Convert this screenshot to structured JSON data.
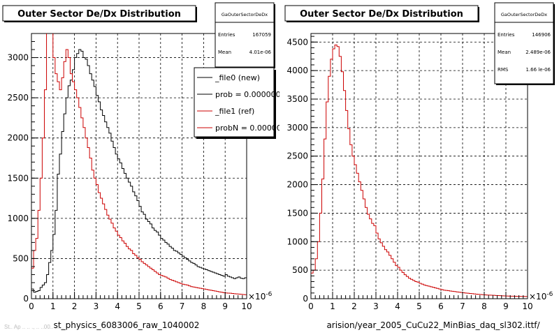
{
  "chart_data": [
    {
      "type": "histogram",
      "title": "Outer Sector De/Dx Distribution",
      "xlabel": "st_physics_6083006_raw_1040002",
      "x_exponent_label": "×10",
      "x_exponent_sup": "-6",
      "xlim": [
        0,
        10
      ],
      "ylim": [
        0,
        3300
      ],
      "x_ticks": [
        0,
        1,
        2,
        3,
        4,
        5,
        6,
        7,
        8,
        9,
        10
      ],
      "y_ticks": [
        0,
        500,
        1000,
        1500,
        2000,
        2500,
        3000
      ],
      "grid": true,
      "stats_box": {
        "title": "GaOuterSectorDeDx",
        "rows": [
          {
            "label": "Entries",
            "value": "167059"
          },
          {
            "label": "Mean",
            "value": "4.01e-06"
          }
        ]
      },
      "legend": {
        "placement": "top-right",
        "entries": [
          {
            "label": "_file0 (new)",
            "color": "#000000"
          },
          {
            "label": "prob = 0.000000",
            "color": "#000000"
          },
          {
            "label": "_file1 (ref)",
            "color": "#cc0000"
          },
          {
            "label": "probN = 0.000000",
            "color": "#cc0000"
          }
        ]
      },
      "series": [
        {
          "name": "_file0 (new)",
          "color": "#000000",
          "bin_width": 0.1,
          "x_start": 0,
          "values": [
            120,
            80,
            90,
            100,
            140,
            170,
            200,
            300,
            450,
            600,
            800,
            1100,
            1550,
            1800,
            2080,
            2300,
            2500,
            2650,
            2720,
            2850,
            3000,
            3050,
            3100,
            3080,
            3000,
            2980,
            2900,
            2800,
            2720,
            2640,
            2530,
            2450,
            2350,
            2280,
            2200,
            2130,
            2060,
            1960,
            1880,
            1800,
            1740,
            1690,
            1620,
            1560,
            1500,
            1450,
            1400,
            1330,
            1280,
            1220,
            1150,
            1080,
            1050,
            990,
            960,
            930,
            880,
            850,
            830,
            790,
            750,
            730,
            700,
            680,
            650,
            630,
            600,
            590,
            570,
            550,
            530,
            510,
            490,
            470,
            450,
            440,
            420,
            400,
            390,
            380,
            370,
            360,
            350,
            340,
            330,
            320,
            310,
            300,
            290,
            280,
            300,
            280,
            270,
            260,
            250,
            260,
            270,
            255,
            250,
            260
          ]
        },
        {
          "name": "_file1 (ref)",
          "color": "#cc0000",
          "bin_width": 0.1,
          "x_start": 0,
          "values": [
            380,
            600,
            750,
            1100,
            1500,
            2000,
            2600,
            3400,
            3500,
            3500,
            3000,
            2800,
            2700,
            2600,
            2750,
            2950,
            3100,
            3000,
            2800,
            2700,
            2600,
            2500,
            2380,
            2250,
            2130,
            2000,
            1880,
            1750,
            1600,
            1500,
            1420,
            1320,
            1250,
            1180,
            1110,
            1040,
            990,
            940,
            880,
            840,
            790,
            760,
            720,
            690,
            650,
            620,
            600,
            560,
            540,
            510,
            490,
            460,
            440,
            420,
            400,
            380,
            360,
            340,
            320,
            300,
            290,
            280,
            270,
            255,
            240,
            230,
            220,
            210,
            200,
            190,
            180,
            175,
            170,
            160,
            150,
            145,
            140,
            135,
            130,
            125,
            120,
            115,
            110,
            105,
            100,
            95,
            90,
            85,
            80,
            75,
            72,
            70,
            68,
            65,
            62,
            60,
            58,
            55,
            52,
            50
          ]
        }
      ]
    },
    {
      "type": "histogram",
      "title": "Outer Sector De/Dx Distribution",
      "xlabel": "arision/year_2005_CuCu22_MinBias_daq_sl302.ittf/",
      "x_exponent_label": "×10",
      "x_exponent_sup": "-6",
      "xlim": [
        0,
        10
      ],
      "ylim": [
        0,
        4650
      ],
      "x_ticks": [
        0,
        1,
        2,
        3,
        4,
        5,
        6,
        7,
        8,
        9,
        10
      ],
      "y_ticks": [
        0,
        500,
        1000,
        1500,
        2000,
        2500,
        3000,
        3500,
        4000,
        4500
      ],
      "grid": true,
      "stats_box": {
        "title": "GaOuterSectorDeDx",
        "rows": [
          {
            "label": "Entries",
            "value": "146906"
          },
          {
            "label": "Mean",
            "value": "2.489e-06"
          },
          {
            "label": "RMS",
            "value": "1.66 le-06"
          }
        ]
      },
      "series": [
        {
          "name": "",
          "color": "#cc0000",
          "bin_width": 0.1,
          "x_start": 0,
          "values": [
            450,
            500,
            700,
            1000,
            1500,
            2100,
            2800,
            3450,
            3900,
            4200,
            4380,
            4450,
            4420,
            4250,
            3980,
            3650,
            3300,
            2980,
            2700,
            2500,
            2350,
            2200,
            2050,
            1900,
            1750,
            1600,
            1480,
            1400,
            1320,
            1280,
            1150,
            1050,
            980,
            920,
            860,
            820,
            760,
            700,
            640,
            580,
            550,
            500,
            460,
            420,
            390,
            360,
            340,
            320,
            300,
            290,
            270,
            255,
            240,
            230,
            220,
            210,
            200,
            190,
            180,
            170,
            160,
            150,
            145,
            140,
            135,
            130,
            125,
            120,
            115,
            110,
            105,
            100,
            96,
            92,
            88,
            84,
            80,
            77,
            74,
            71,
            68,
            65,
            63,
            61,
            59,
            57,
            55,
            53,
            51,
            49,
            47,
            46,
            45,
            44,
            43,
            42,
            41,
            40,
            39,
            38
          ]
        }
      ]
    }
  ],
  "footer": {
    "left_small": "St.. Ap .. .. ., .. ..00.. ..:..."
  }
}
